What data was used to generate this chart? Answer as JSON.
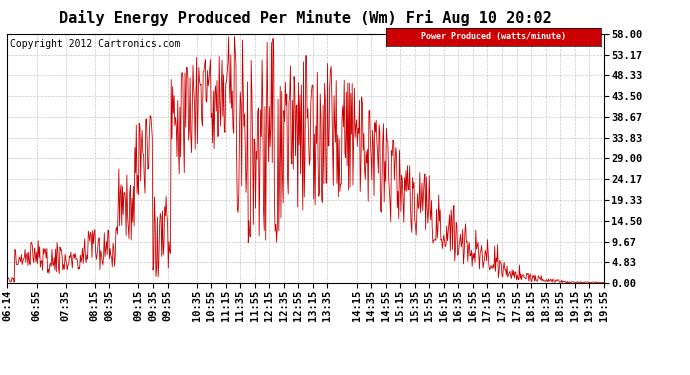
{
  "title": "Daily Energy Produced Per Minute (Wm) Fri Aug 10 20:02",
  "copyright": "Copyright 2012 Cartronics.com",
  "legend_label": "Power Produced (watts/minute)",
  "legend_bg": "#cc0000",
  "legend_fg": "#ffffff",
  "line_color": "#cc0000",
  "bg_color": "#ffffff",
  "grid_color": "#c8c8c8",
  "title_fontsize": 11,
  "copyright_fontsize": 7,
  "axis_tick_fontsize": 7.5,
  "ymax": 58.0,
  "yticks": [
    0.0,
    4.83,
    9.67,
    14.5,
    19.33,
    24.17,
    29.0,
    33.83,
    38.67,
    43.5,
    48.33,
    53.17,
    58.0
  ],
  "xtick_labels": [
    "06:14",
    "06:55",
    "07:35",
    "08:15",
    "08:35",
    "09:15",
    "09:35",
    "09:55",
    "10:35",
    "10:55",
    "11:15",
    "11:35",
    "11:55",
    "12:15",
    "12:35",
    "12:55",
    "13:15",
    "13:35",
    "14:15",
    "14:35",
    "14:55",
    "15:15",
    "15:35",
    "15:55",
    "16:15",
    "16:35",
    "16:55",
    "17:15",
    "17:35",
    "17:55",
    "18:15",
    "18:35",
    "18:55",
    "19:15",
    "19:35",
    "19:55"
  ]
}
